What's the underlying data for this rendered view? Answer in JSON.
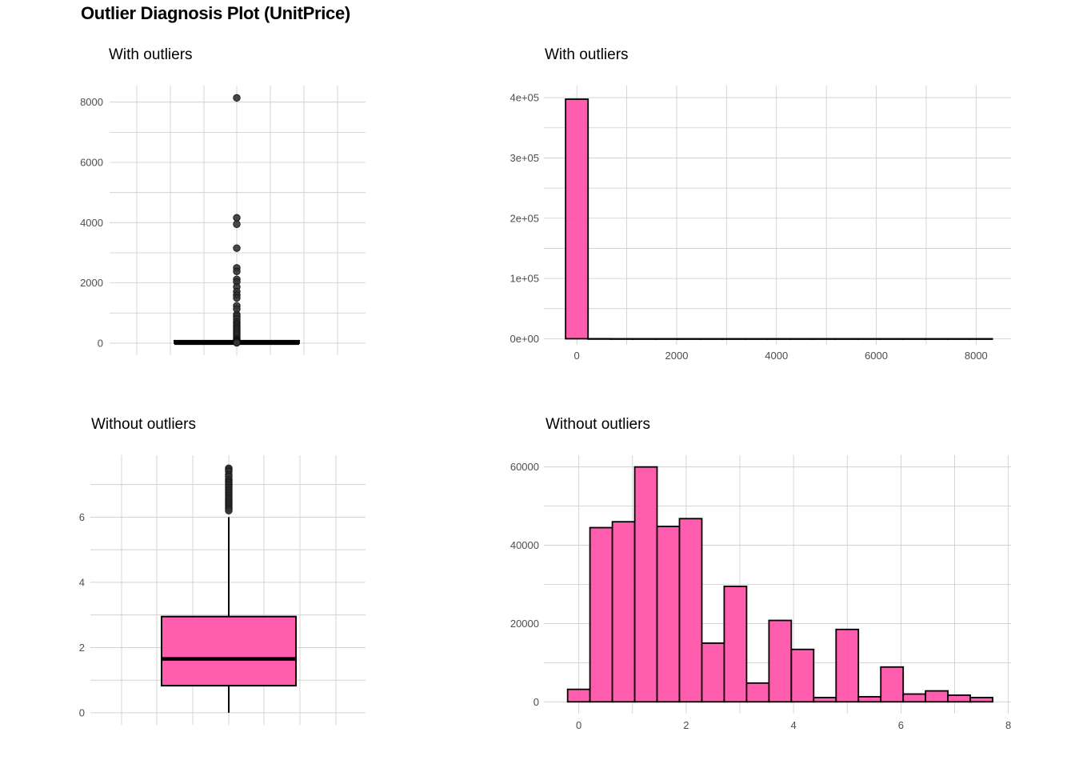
{
  "title": "Outlier Diagnosis Plot (UnitPrice)",
  "colors": {
    "fill": "#FF4FA7",
    "outline": "#000000",
    "grid": "#cccccc",
    "tick_text": "#4d4d4d"
  },
  "chart_data": [
    {
      "type": "box",
      "panel": "top-left",
      "title": "With outliers",
      "xlabel": "",
      "ylabel": "",
      "ylim": [
        -400,
        8550
      ],
      "yticks": [
        0,
        2000,
        4000,
        6000,
        8000
      ],
      "grid": true,
      "box": {
        "q1": 1.25,
        "median": 1.95,
        "q3": 3.75,
        "whisker_low": 0,
        "whisker_high": 7.5
      },
      "outliers": [
        8142,
        4161,
        3949,
        3155,
        2500,
        2382,
        2118,
        2033,
        1867,
        1714,
        1599,
        1500,
        1241,
        1136,
        950,
        887,
        800,
        700,
        650,
        600,
        550,
        500,
        450,
        400,
        350,
        300,
        250,
        200,
        150,
        120,
        100,
        80,
        60,
        40,
        20,
        10
      ]
    },
    {
      "type": "histogram",
      "panel": "top-right",
      "title": "With outliers",
      "xlabel": "",
      "ylabel": "",
      "xlim": [
        -660,
        8700
      ],
      "ylim": [
        -10000,
        420000
      ],
      "xticks": [
        0,
        2000,
        4000,
        6000,
        8000
      ],
      "yticks": [
        0,
        100000,
        200000,
        300000,
        400000
      ],
      "ytick_labels": [
        "0e+00",
        "1e+05",
        "2e+05",
        "3e+05",
        "4e+05"
      ],
      "grid": true,
      "bin_width": 450,
      "bins": [
        {
          "x0": -225,
          "x1": 225,
          "count": 397500
        },
        {
          "x0": 225,
          "x1": 675,
          "count": 120
        },
        {
          "x0": 675,
          "x1": 1125,
          "count": 30
        },
        {
          "x0": 1125,
          "x1": 1575,
          "count": 15
        },
        {
          "x0": 1575,
          "x1": 2025,
          "count": 10
        },
        {
          "x0": 2025,
          "x1": 2475,
          "count": 6
        },
        {
          "x0": 2475,
          "x1": 2925,
          "count": 3
        },
        {
          "x0": 2925,
          "x1": 3375,
          "count": 2
        },
        {
          "x0": 3375,
          "x1": 3825,
          "count": 0
        },
        {
          "x0": 3825,
          "x1": 4275,
          "count": 3
        },
        {
          "x0": 4275,
          "x1": 4725,
          "count": 0
        },
        {
          "x0": 4725,
          "x1": 5175,
          "count": 0
        },
        {
          "x0": 5175,
          "x1": 5625,
          "count": 0
        },
        {
          "x0": 5625,
          "x1": 6075,
          "count": 0
        },
        {
          "x0": 6075,
          "x1": 6525,
          "count": 0
        },
        {
          "x0": 6525,
          "x1": 6975,
          "count": 0
        },
        {
          "x0": 6975,
          "x1": 7425,
          "count": 0
        },
        {
          "x0": 7425,
          "x1": 7875,
          "count": 0
        },
        {
          "x0": 7875,
          "x1": 8325,
          "count": 1
        }
      ]
    },
    {
      "type": "box",
      "panel": "bottom-left",
      "title": "Without outliers",
      "xlabel": "",
      "ylabel": "",
      "ylim": [
        -0.37,
        7.9
      ],
      "yticks": [
        0,
        2,
        4,
        6
      ],
      "grid": true,
      "box": {
        "q1": 0.83,
        "median": 1.65,
        "q3": 2.95,
        "whisker_low": 0,
        "whisker_high": 6.0
      },
      "outliers": [
        7.5,
        7.45,
        7.4,
        7.3,
        7.25,
        7.15,
        7.1,
        7.05,
        7.0,
        6.95,
        6.9,
        6.85,
        6.8,
        6.75,
        6.7,
        6.65,
        6.6,
        6.55,
        6.5,
        6.45,
        6.4,
        6.35,
        6.3,
        6.25,
        6.2
      ]
    },
    {
      "type": "histogram",
      "panel": "bottom-right",
      "title": "Without outliers",
      "xlabel": "",
      "ylabel": "",
      "xlim": [
        -0.65,
        8.05
      ],
      "ylim": [
        -3000,
        63000
      ],
      "xticks": [
        0,
        2,
        4,
        6,
        8
      ],
      "yticks": [
        0,
        20000,
        40000,
        60000
      ],
      "grid": true,
      "bin_width": 0.4167,
      "bins": [
        {
          "x0": -0.208,
          "x1": 0.208,
          "count": 3200
        },
        {
          "x0": 0.208,
          "x1": 0.625,
          "count": 44500
        },
        {
          "x0": 0.625,
          "x1": 1.042,
          "count": 46000
        },
        {
          "x0": 1.042,
          "x1": 1.458,
          "count": 60000
        },
        {
          "x0": 1.458,
          "x1": 1.875,
          "count": 44800
        },
        {
          "x0": 1.875,
          "x1": 2.292,
          "count": 46800
        },
        {
          "x0": 2.292,
          "x1": 2.708,
          "count": 15000
        },
        {
          "x0": 2.708,
          "x1": 3.125,
          "count": 29500
        },
        {
          "x0": 3.125,
          "x1": 3.542,
          "count": 4800
        },
        {
          "x0": 3.542,
          "x1": 3.958,
          "count": 20800
        },
        {
          "x0": 3.958,
          "x1": 4.375,
          "count": 13400
        },
        {
          "x0": 4.375,
          "x1": 4.792,
          "count": 1100
        },
        {
          "x0": 4.792,
          "x1": 5.208,
          "count": 18500
        },
        {
          "x0": 5.208,
          "x1": 5.625,
          "count": 1300
        },
        {
          "x0": 5.625,
          "x1": 6.042,
          "count": 8900
        },
        {
          "x0": 6.042,
          "x1": 6.458,
          "count": 2000
        },
        {
          "x0": 6.458,
          "x1": 6.875,
          "count": 2800
        },
        {
          "x0": 6.875,
          "x1": 7.292,
          "count": 1700
        },
        {
          "x0": 7.292,
          "x1": 7.708,
          "count": 1100
        }
      ]
    }
  ]
}
